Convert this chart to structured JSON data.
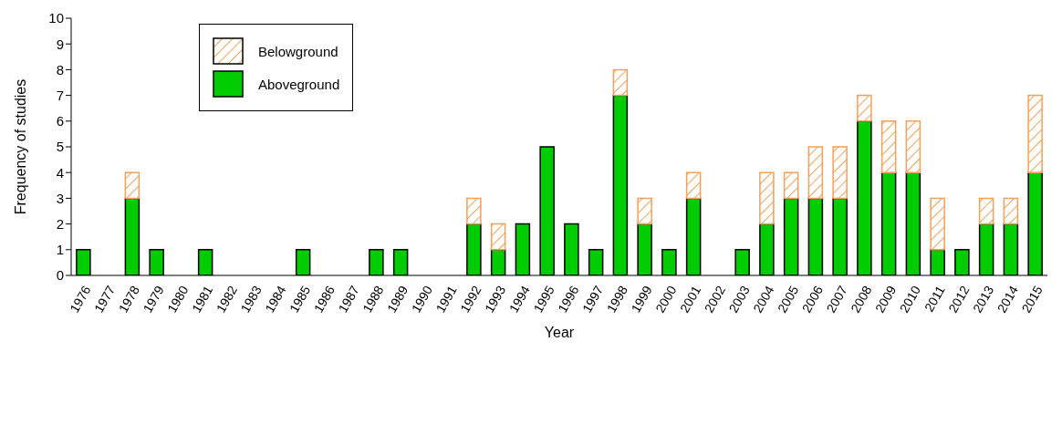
{
  "chart_data": {
    "type": "bar",
    "stacked": true,
    "xlabel": "Year",
    "ylabel": "Frequency of studies",
    "categories": [
      "1976",
      "1977",
      "1978",
      "1979",
      "1980",
      "1981",
      "1982",
      "1983",
      "1984",
      "1985",
      "1986",
      "1987",
      "1988",
      "1989",
      "1990",
      "1991",
      "1992",
      "1993",
      "1994",
      "1995",
      "1996",
      "1997",
      "1998",
      "1999",
      "2000",
      "2001",
      "2002",
      "2003",
      "2004",
      "2005",
      "2006",
      "2007",
      "2008",
      "2009",
      "2010",
      "2011",
      "2012",
      "2013",
      "2014",
      "2015"
    ],
    "series": [
      {
        "name": "Aboveground",
        "color": "#00cc00",
        "values": [
          1,
          0,
          3,
          1,
          0,
          1,
          0,
          0,
          0,
          1,
          0,
          0,
          1,
          1,
          0,
          0,
          2,
          1,
          2,
          5,
          2,
          1,
          7,
          2,
          1,
          3,
          0,
          1,
          2,
          3,
          3,
          3,
          6,
          4,
          4,
          1,
          1,
          2,
          2,
          4
        ]
      },
      {
        "name": "Belowground",
        "color": "#f5a05a",
        "values": [
          0,
          0,
          1,
          0,
          0,
          0,
          0,
          0,
          0,
          0,
          0,
          0,
          0,
          0,
          0,
          0,
          1,
          1,
          0,
          0,
          0,
          0,
          1,
          1,
          0,
          1,
          0,
          0,
          2,
          1,
          2,
          2,
          1,
          2,
          2,
          2,
          0,
          1,
          1,
          3
        ]
      }
    ],
    "ylim": [
      0,
      10
    ],
    "yticks": [
      0,
      1,
      2,
      3,
      4,
      5,
      6,
      7,
      8,
      9,
      10
    ],
    "legend": "top left"
  }
}
